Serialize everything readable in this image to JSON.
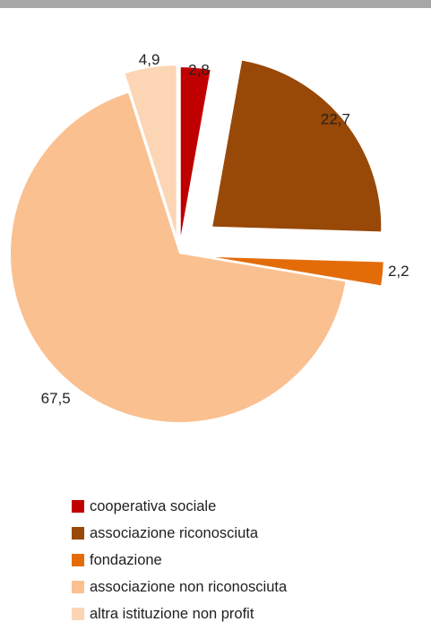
{
  "chart_data": {
    "type": "pie",
    "categories": [
      "cooperativa sociale",
      "associazione riconosciuta",
      "fondazione",
      "associazione non riconosciuta",
      "altra istituzione non profit"
    ],
    "values": [
      2.8,
      22.7,
      2.2,
      67.5,
      4.9
    ],
    "value_labels": [
      "2,8",
      "22,7",
      "2,2",
      "67,5",
      "4,9"
    ],
    "colors": [
      "#c00000",
      "#984807",
      "#e36c09",
      "#fac090",
      "#fcd5b5"
    ],
    "exploded": [
      true,
      true,
      true,
      false,
      true
    ],
    "legend_position": "bottom",
    "title": ""
  }
}
